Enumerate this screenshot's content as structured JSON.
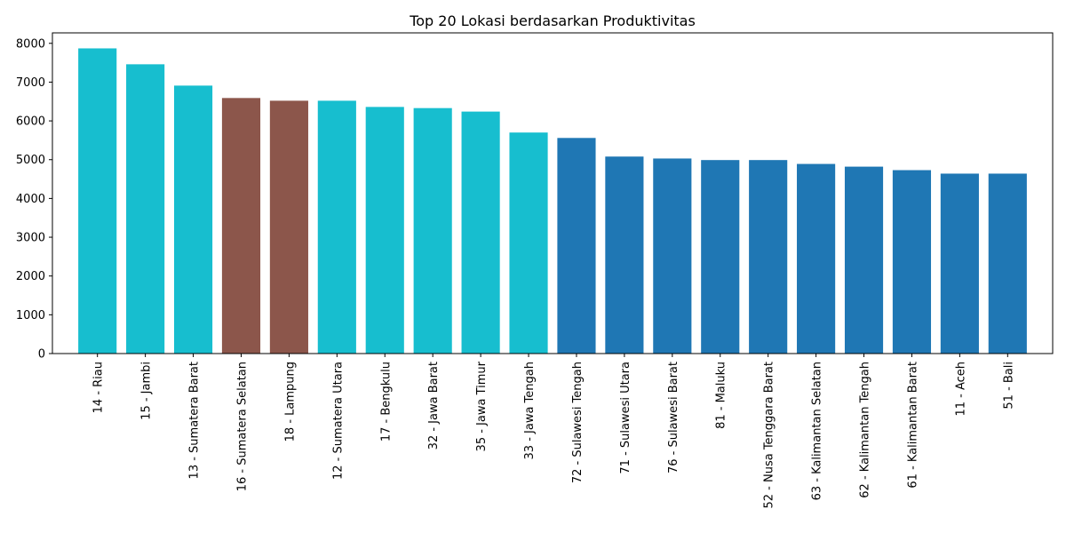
{
  "chart_data": {
    "type": "bar",
    "title": "Top 20 Lokasi berdasarkan Produktivitas",
    "xlabel": "",
    "ylabel": "",
    "ylim": [
      0,
      8270
    ],
    "yticks": [
      0,
      1000,
      2000,
      3000,
      4000,
      5000,
      6000,
      7000,
      8000
    ],
    "grid": false,
    "categories": [
      "14 - Riau",
      "15 - Jambi",
      "13 - Sumatera Barat",
      "16 - Sumatera Selatan",
      "18 - Lampung",
      "12 - Sumatera Utara",
      "17 - Bengkulu",
      "32 - Jawa Barat",
      "35 - Jawa Timur",
      "33 - Jawa Tengah",
      "72 - Sulawesi Tengah",
      "71 - Sulawesi Utara",
      "76 - Sulawesi Barat",
      "81 - Maluku",
      "52 - Nusa Tenggara Barat",
      "63 - Kalimantan Selatan",
      "62 - Kalimantan Tengah",
      "61 - Kalimantan Barat",
      "11 - Aceh",
      "51 - Bali"
    ],
    "values": [
      7870,
      7460,
      6910,
      6590,
      6520,
      6520,
      6360,
      6330,
      6240,
      5700,
      5560,
      5080,
      5030,
      4990,
      4990,
      4890,
      4820,
      4730,
      4640,
      4640
    ],
    "colors": [
      "#17becf",
      "#17becf",
      "#17becf",
      "#8c564b",
      "#8c564b",
      "#17becf",
      "#17becf",
      "#17becf",
      "#17becf",
      "#17becf",
      "#1f77b4",
      "#1f77b4",
      "#1f77b4",
      "#1f77b4",
      "#1f77b4",
      "#1f77b4",
      "#1f77b4",
      "#1f77b4",
      "#1f77b4",
      "#1f77b4"
    ]
  }
}
